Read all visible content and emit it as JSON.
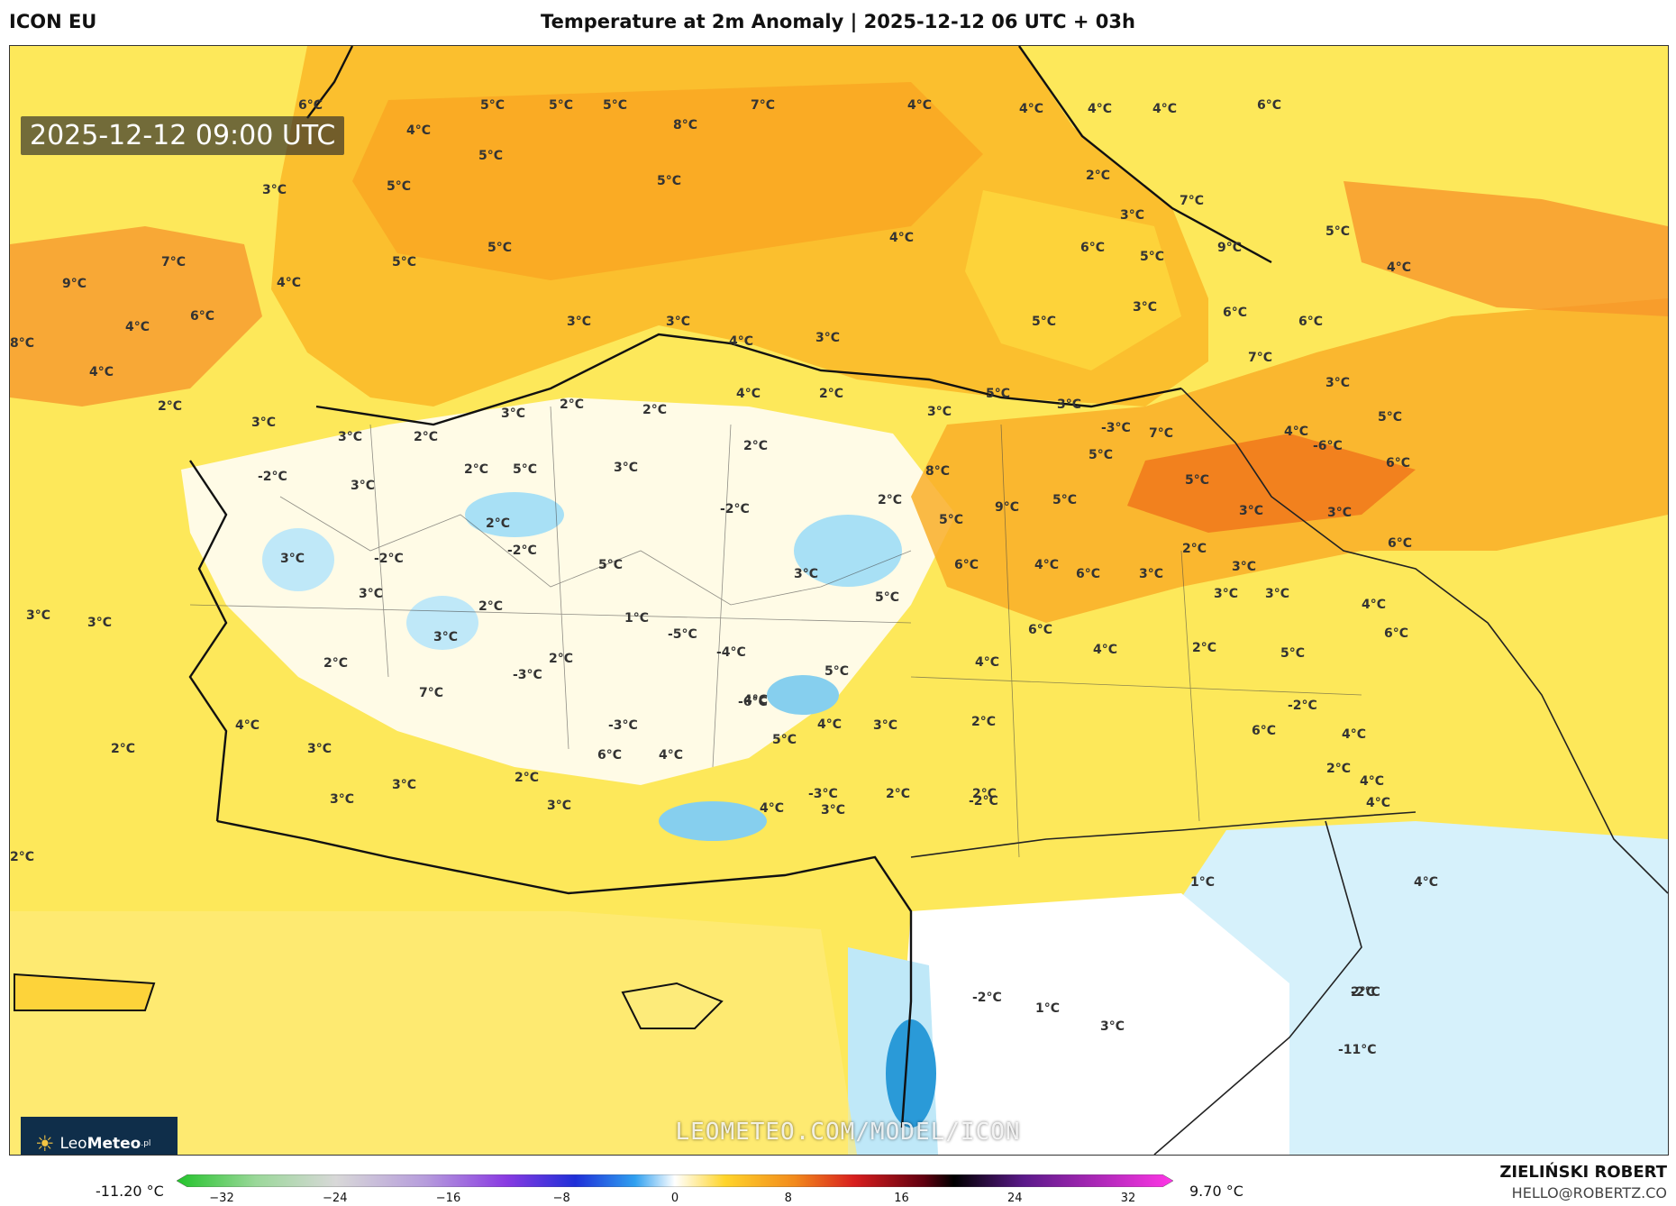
{
  "header": {
    "model": "ICON EU",
    "title": "Temperature at 2m Anomaly | 2025-12-12 06 UTC + 03h"
  },
  "map": {
    "valid_time": "2025-12-12 09:00 UTC",
    "watermark": "LEOMETEO.COM/MODEL/ICON",
    "logo": {
      "brand_light": "Leo",
      "brand_bold": "Meteo",
      "suffix": ".pl"
    },
    "colors": {
      "land_base": "#fde85a",
      "sea_warm": "#fbb62c",
      "cold": "#8fd6f0",
      "neutral": "#ffffff",
      "hot": "#f27a1c"
    },
    "labels": [
      {
        "text": "6°C"
      },
      {
        "text": "5°C"
      },
      {
        "text": "5°C"
      },
      {
        "text": "5°C"
      },
      {
        "text": "8°C"
      },
      {
        "text": "7°C"
      },
      {
        "text": "4°C"
      },
      {
        "text": "4°C"
      },
      {
        "text": "4°C"
      },
      {
        "text": "4°C"
      },
      {
        "text": "6°C"
      },
      {
        "text": "4°C"
      },
      {
        "text": "5°C"
      },
      {
        "text": "5°C"
      },
      {
        "text": "5°C"
      },
      {
        "text": "2°C"
      },
      {
        "text": "7°C"
      },
      {
        "text": "3°C"
      },
      {
        "text": "3°C"
      },
      {
        "text": "5°C"
      },
      {
        "text": "4°C"
      },
      {
        "text": "5°C"
      },
      {
        "text": "5°C"
      },
      {
        "text": "9°C"
      },
      {
        "text": "7°C"
      },
      {
        "text": "4°C"
      },
      {
        "text": "9°C"
      },
      {
        "text": "6°C"
      },
      {
        "text": "5°C"
      },
      {
        "text": "3°C"
      },
      {
        "text": "4°C"
      },
      {
        "text": "3°C"
      },
      {
        "text": "3°C"
      },
      {
        "text": "4°C"
      },
      {
        "text": "3°C"
      },
      {
        "text": "5°C"
      },
      {
        "text": "6°C"
      },
      {
        "text": "6°C"
      },
      {
        "text": "8°C"
      },
      {
        "text": "6°C"
      },
      {
        "text": "2°C"
      },
      {
        "text": "7°C"
      },
      {
        "text": "4°C"
      },
      {
        "text": "4°C"
      },
      {
        "text": "3°C"
      },
      {
        "text": "5°C"
      },
      {
        "text": "2°C"
      },
      {
        "text": "3°C"
      },
      {
        "text": "3°C"
      },
      {
        "text": "3°C"
      },
      {
        "text": "2°C"
      },
      {
        "text": "4°C"
      },
      {
        "text": "-3°C"
      },
      {
        "text": "7°C"
      },
      {
        "text": "4°C"
      },
      {
        "text": "5°C"
      },
      {
        "text": "3°C"
      },
      {
        "text": "2°C"
      },
      {
        "text": "2°C"
      },
      {
        "text": "-6°C"
      },
      {
        "text": "3°C"
      },
      {
        "text": "2°C"
      },
      {
        "text": "8°C"
      },
      {
        "text": "5°C"
      },
      {
        "text": "6°C"
      },
      {
        "text": "2°C"
      },
      {
        "text": "5°C"
      },
      {
        "text": "3°C"
      },
      {
        "text": "-2°C"
      },
      {
        "text": "9°C"
      },
      {
        "text": "5°C"
      },
      {
        "text": "-2°C"
      },
      {
        "text": "2°C"
      },
      {
        "text": "2°C"
      },
      {
        "text": "5°C"
      },
      {
        "text": "5°C"
      },
      {
        "text": "3°C"
      },
      {
        "text": "3°C"
      },
      {
        "text": "-6°C"
      },
      {
        "text": "3°C"
      },
      {
        "text": "6°C"
      },
      {
        "text": "-2°C"
      },
      {
        "text": "-2°C"
      },
      {
        "text": "6°C"
      },
      {
        "text": "3°C"
      },
      {
        "text": "3°C"
      },
      {
        "text": "2°C"
      },
      {
        "text": "5°C"
      },
      {
        "text": "6°C"
      },
      {
        "text": "4°C"
      },
      {
        "text": "3°C"
      },
      {
        "text": "-5°C"
      },
      {
        "text": "-4°C"
      },
      {
        "text": "1°C"
      },
      {
        "text": "3°C"
      },
      {
        "text": "3°C"
      },
      {
        "text": "3°C"
      },
      {
        "text": "5°C"
      },
      {
        "text": "4°C"
      },
      {
        "text": "3°C"
      },
      {
        "text": "-3°C"
      },
      {
        "text": "3°C"
      },
      {
        "text": "2°C"
      },
      {
        "text": "5°C"
      },
      {
        "text": "3°C"
      },
      {
        "text": "6°C"
      },
      {
        "text": "4°C"
      },
      {
        "text": "2°C"
      },
      {
        "text": "6°C"
      },
      {
        "text": "3°C"
      },
      {
        "text": "4°C"
      },
      {
        "text": "-3°C"
      },
      {
        "text": "2°C"
      },
      {
        "text": "2°C"
      },
      {
        "text": "5°C"
      },
      {
        "text": "-2°C"
      },
      {
        "text": "4°C"
      },
      {
        "text": "2°C"
      },
      {
        "text": "4°C"
      },
      {
        "text": "7°C"
      },
      {
        "text": "6°C"
      },
      {
        "text": "4°C"
      },
      {
        "text": "4°C"
      },
      {
        "text": "5°C"
      },
      {
        "text": "6°C"
      },
      {
        "text": "4°C"
      },
      {
        "text": "4°C"
      },
      {
        "text": "3°C"
      },
      {
        "text": "2°C"
      },
      {
        "text": "2°C"
      },
      {
        "text": "4°C"
      },
      {
        "text": "3°C"
      },
      {
        "text": "2°C"
      },
      {
        "text": "3°C"
      },
      {
        "text": "2°C"
      },
      {
        "text": "-3°C"
      },
      {
        "text": "3°C"
      },
      {
        "text": "4°C"
      },
      {
        "text": "-2°C"
      },
      {
        "text": "2°C"
      },
      {
        "text": "2°C"
      },
      {
        "text": "3°C"
      },
      {
        "text": "3°C"
      },
      {
        "text": "-2°C"
      },
      {
        "text": "2°C"
      },
      {
        "text": "-11°C"
      },
      {
        "text": "4°C"
      },
      {
        "text": "1°C"
      },
      {
        "text": "3°C"
      },
      {
        "text": "1°C"
      },
      {
        "text": "-2°C"
      }
    ]
  },
  "colorbar": {
    "min_label": "-11.20 °C",
    "max_label": "9.70 °C",
    "ticks": [
      "−32",
      "−24",
      "−16",
      "−8",
      "0",
      "8",
      "16",
      "24",
      "32"
    ]
  },
  "footer": {
    "author": "ZIELIŃSKI ROBERT",
    "email": "HELLO@ROBERTZ.CO"
  }
}
